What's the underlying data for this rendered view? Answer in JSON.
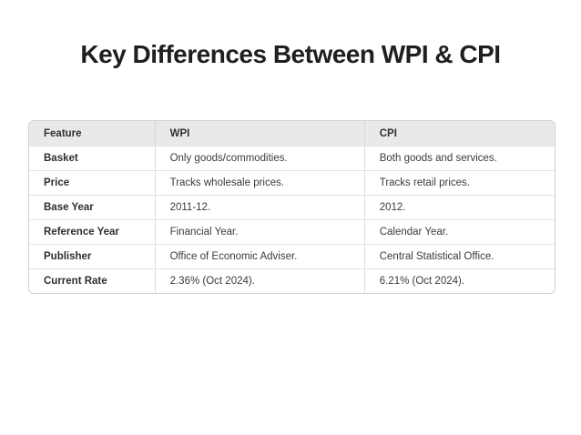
{
  "title": "Key Differences Between WPI & CPI",
  "table": {
    "columns": {
      "feature": "Feature",
      "wpi": "WPI",
      "cpi": "CPI"
    },
    "rows": [
      {
        "feature": "Basket",
        "wpi": "Only goods/commodities.",
        "cpi": "Both goods and services."
      },
      {
        "feature": "Price",
        "wpi": "Tracks wholesale prices.",
        "cpi": "Tracks retail prices."
      },
      {
        "feature": "Base Year",
        "wpi": "2011-12.",
        "cpi": "2012."
      },
      {
        "feature": "Reference Year",
        "wpi": "Financial Year.",
        "cpi": "Calendar Year."
      },
      {
        "feature": "Publisher",
        "wpi": "Office of Economic Adviser.",
        "cpi": "Central Statistical Office."
      },
      {
        "feature": "Current Rate",
        "wpi": "2.36% (Oct 2024).",
        "cpi": "6.21% (Oct 2024)."
      }
    ]
  },
  "colors": {
    "header_background": "#e9e9e9",
    "table_border": "#d2d2d2",
    "row_divider": "#e4e4e4",
    "title_text": "#1f1f1f",
    "body_text": "#3b3b3b"
  }
}
